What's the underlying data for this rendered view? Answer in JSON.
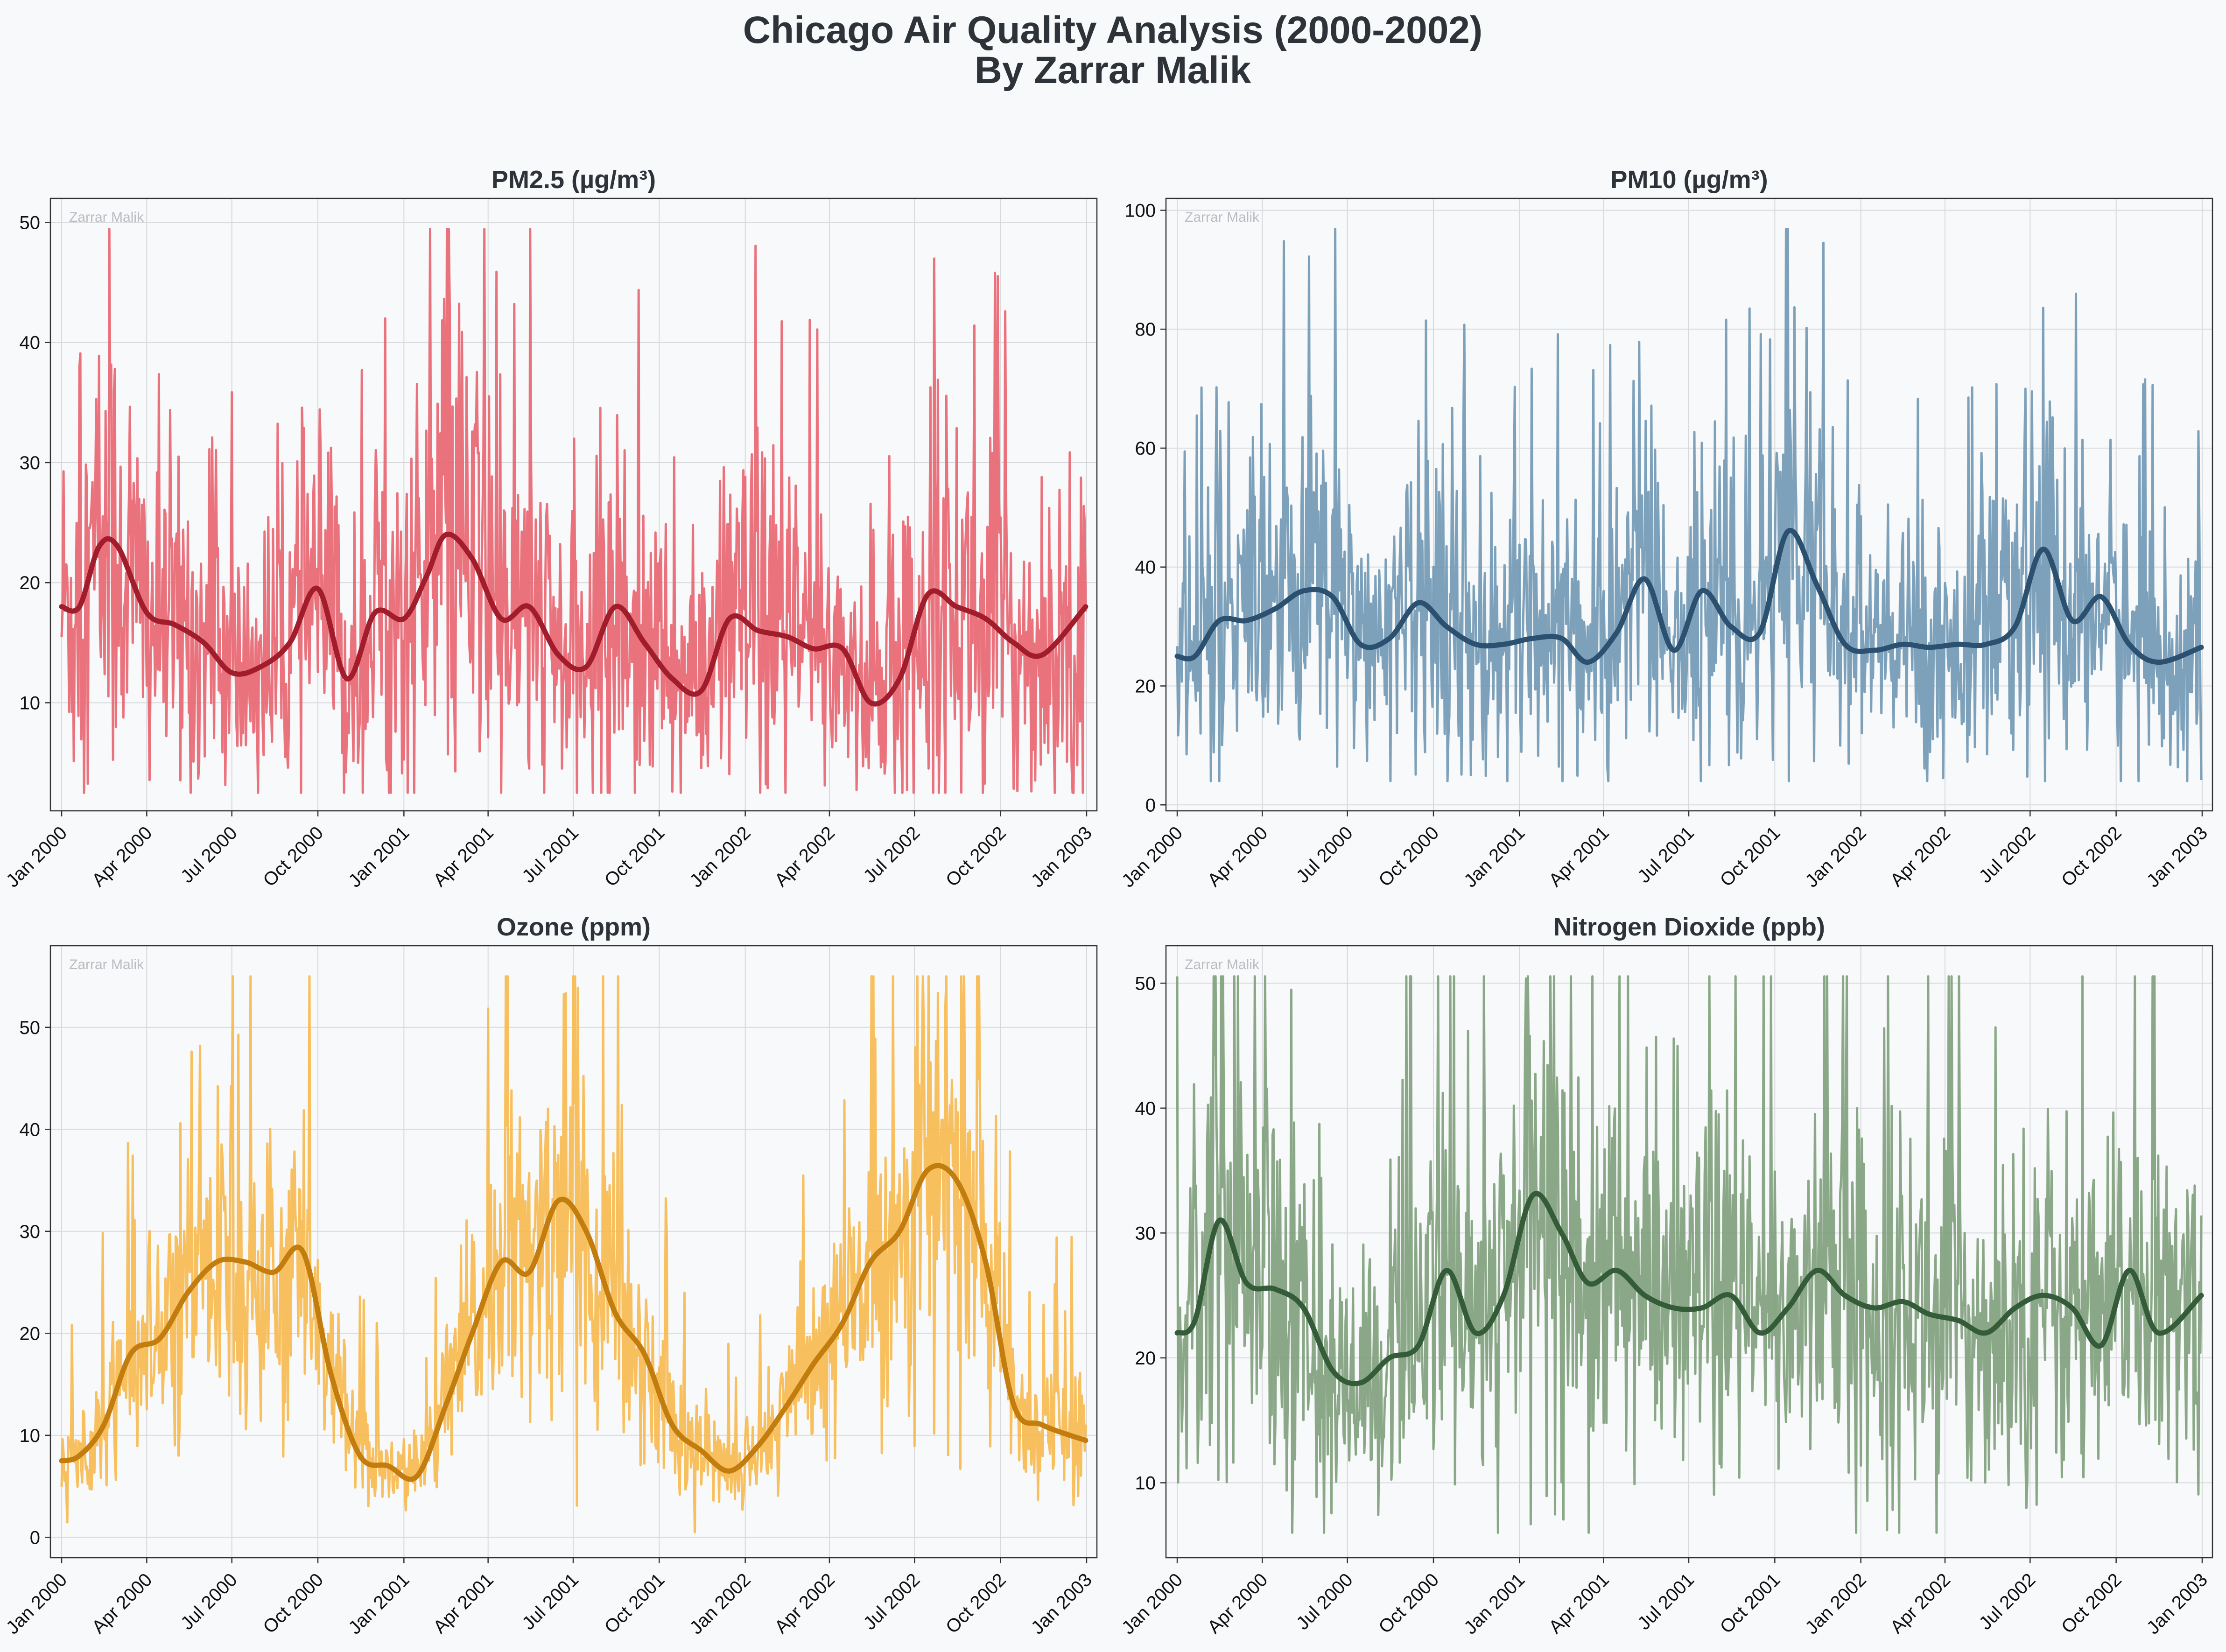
{
  "figure": {
    "title_line1": "Chicago Air Quality Analysis (2000-2002)",
    "title_line2": "By Zarrar Malik",
    "background": "#f8f9fa",
    "watermark": "Zarrar Malik"
  },
  "chart_data": [
    {
      "type": "line",
      "title": "PM2.5 (µg/m³)",
      "xlabel": "",
      "ylabel": "",
      "x_range": [
        "2000-01-01",
        "2002-12-31"
      ],
      "x_ticks": [
        "Jan 2000",
        "Apr 2000",
        "Jul 2000",
        "Oct 2000",
        "Jan 2001",
        "Apr 2001",
        "Jul 2001",
        "Oct 2001",
        "Jan 2002",
        "Apr 2002",
        "Jul 2002",
        "Oct 2002",
        "Jan 2003"
      ],
      "ylim": [
        1,
        52
      ],
      "y_ticks": [
        10,
        20,
        30,
        40,
        50
      ],
      "grid": true,
      "colors": {
        "daily": "#e8636f",
        "rolling": "#a11d2b"
      },
      "series": [
        {
          "kind": "daily",
          "noise": 0.45,
          "min": 2.5,
          "x": [
            "2000-01-01",
            "2000-01-20",
            "2000-02-10",
            "2000-03-01",
            "2000-04-01",
            "2000-05-01",
            "2000-06-01",
            "2000-07-01",
            "2000-08-01",
            "2000-09-01",
            "2000-10-01",
            "2000-11-01",
            "2000-12-01",
            "2001-01-01",
            "2001-01-25",
            "2001-02-15",
            "2001-03-15",
            "2001-04-15",
            "2001-05-15",
            "2001-06-15",
            "2001-07-15",
            "2001-08-15",
            "2001-09-15",
            "2001-10-15",
            "2001-11-15",
            "2001-12-15",
            "2002-01-15",
            "2002-02-15",
            "2002-03-15",
            "2002-04-15",
            "2002-05-15",
            "2002-06-15",
            "2002-07-15",
            "2002-08-15",
            "2002-09-15",
            "2002-10-15",
            "2002-11-15",
            "2002-12-31"
          ],
          "values": [
            18,
            18,
            23,
            23,
            17.5,
            16.5,
            15,
            12.5,
            13,
            15,
            19.5,
            12,
            17.5,
            17,
            20.5,
            24,
            22,
            17,
            18,
            14,
            13,
            18,
            15,
            12,
            11,
            17,
            16,
            15.5,
            14.5,
            14.5,
            10,
            12,
            19,
            18,
            17,
            15,
            14,
            18
          ]
        },
        {
          "kind": "rolling",
          "x": [
            "2000-01-01",
            "2000-01-20",
            "2000-02-10",
            "2000-03-01",
            "2000-04-01",
            "2000-05-01",
            "2000-06-01",
            "2000-07-01",
            "2000-08-01",
            "2000-09-01",
            "2000-10-01",
            "2000-11-01",
            "2000-12-01",
            "2001-01-01",
            "2001-01-25",
            "2001-02-15",
            "2001-03-15",
            "2001-04-15",
            "2001-05-15",
            "2001-06-15",
            "2001-07-15",
            "2001-08-15",
            "2001-09-15",
            "2001-10-15",
            "2001-11-15",
            "2001-12-15",
            "2002-01-15",
            "2002-02-15",
            "2002-03-15",
            "2002-04-15",
            "2002-05-15",
            "2002-06-15",
            "2002-07-15",
            "2002-08-15",
            "2002-09-15",
            "2002-10-15",
            "2002-11-15",
            "2002-12-31"
          ],
          "values": [
            18,
            18,
            23,
            23,
            17.5,
            16.5,
            15,
            12.5,
            13,
            15,
            19.5,
            12,
            17.5,
            17,
            20.5,
            24,
            22,
            17,
            18,
            14,
            13,
            18,
            15,
            12,
            11,
            17,
            16,
            15.5,
            14.5,
            14.5,
            10,
            12,
            19,
            18,
            17,
            15,
            14,
            18
          ]
        }
      ]
    },
    {
      "type": "line",
      "title": "PM10 (µg/m³)",
      "xlabel": "",
      "ylabel": "",
      "x_range": [
        "2000-01-01",
        "2002-12-31"
      ],
      "x_ticks": [
        "Jan 2000",
        "Apr 2000",
        "Jul 2000",
        "Oct 2000",
        "Jan 2001",
        "Apr 2001",
        "Jul 2001",
        "Oct 2001",
        "Jan 2002",
        "Apr 2002",
        "Jul 2002",
        "Oct 2002",
        "Jan 2003"
      ],
      "ylim": [
        -1,
        102
      ],
      "y_ticks": [
        0,
        20,
        40,
        60,
        80,
        100
      ],
      "grid": true,
      "colors": {
        "daily": "#6f97b3",
        "rolling": "#2c5170"
      },
      "series": [
        {
          "kind": "daily",
          "noise": 0.4,
          "min": 4,
          "x": [
            "2000-01-01",
            "2000-01-20",
            "2000-02-15",
            "2000-03-15",
            "2000-04-15",
            "2000-05-15",
            "2000-06-15",
            "2000-07-15",
            "2000-08-15",
            "2000-09-15",
            "2000-10-15",
            "2000-11-15",
            "2000-12-15",
            "2001-01-15",
            "2001-02-15",
            "2001-03-15",
            "2001-04-15",
            "2001-05-15",
            "2001-06-15",
            "2001-07-15",
            "2001-08-15",
            "2001-09-15",
            "2001-10-15",
            "2001-11-15",
            "2001-12-15",
            "2002-01-15",
            "2002-02-15",
            "2002-03-15",
            "2002-04-15",
            "2002-05-15",
            "2002-06-15",
            "2002-07-15",
            "2002-08-15",
            "2002-09-15",
            "2002-10-15",
            "2002-11-15",
            "2002-12-31"
          ],
          "values": [
            25,
            25,
            31,
            31,
            33,
            36,
            35,
            27,
            28,
            34,
            30,
            27,
            27,
            28,
            28,
            24,
            29,
            38,
            26,
            36,
            30,
            29,
            46,
            37,
            27,
            26,
            27,
            26.5,
            27,
            27,
            30,
            43,
            31,
            35,
            27,
            24,
            26.5
          ]
        },
        {
          "kind": "rolling",
          "x": [
            "2000-01-01",
            "2000-01-20",
            "2000-02-15",
            "2000-03-15",
            "2000-04-15",
            "2000-05-15",
            "2000-06-15",
            "2000-07-15",
            "2000-08-15",
            "2000-09-15",
            "2000-10-15",
            "2000-11-15",
            "2000-12-15",
            "2001-01-15",
            "2001-02-15",
            "2001-03-15",
            "2001-04-15",
            "2001-05-15",
            "2001-06-15",
            "2001-07-15",
            "2001-08-15",
            "2001-09-15",
            "2001-10-15",
            "2001-11-15",
            "2001-12-15",
            "2002-01-15",
            "2002-02-15",
            "2002-03-15",
            "2002-04-15",
            "2002-05-15",
            "2002-06-15",
            "2002-07-15",
            "2002-08-15",
            "2002-09-15",
            "2002-10-15",
            "2002-11-15",
            "2002-12-31"
          ],
          "values": [
            25,
            25,
            31,
            31,
            33,
            36,
            35,
            27,
            28,
            34,
            30,
            27,
            27,
            28,
            28,
            24,
            29,
            38,
            26,
            36,
            30,
            29,
            46,
            37,
            27,
            26,
            27,
            26.5,
            27,
            27,
            30,
            43,
            31,
            35,
            27,
            24,
            26.5
          ]
        }
      ]
    },
    {
      "type": "line",
      "title": "Ozone (ppm)",
      "xlabel": "",
      "ylabel": "",
      "x_range": [
        "2000-01-01",
        "2002-12-31"
      ],
      "x_ticks": [
        "Jan 2000",
        "Apr 2000",
        "Jul 2000",
        "Oct 2000",
        "Jan 2001",
        "Apr 2001",
        "Jul 2001",
        "Oct 2001",
        "Jan 2002",
        "Apr 2002",
        "Jul 2002",
        "Oct 2002",
        "Jan 2003"
      ],
      "ylim": [
        -2,
        58
      ],
      "y_ticks": [
        0,
        10,
        20,
        30,
        40,
        50
      ],
      "grid": true,
      "colors": {
        "daily": "#f6b84d",
        "rolling": "#c27d0e"
      },
      "series": [
        {
          "kind": "daily",
          "noise": 0.3,
          "min": 0.5,
          "x": [
            "2000-01-01",
            "2000-01-20",
            "2000-02-15",
            "2000-03-15",
            "2000-04-15",
            "2000-05-15",
            "2000-06-15",
            "2000-07-15",
            "2000-08-15",
            "2000-09-15",
            "2000-10-15",
            "2000-11-15",
            "2000-12-15",
            "2001-01-15",
            "2001-02-15",
            "2001-03-15",
            "2001-04-15",
            "2001-05-15",
            "2001-06-15",
            "2001-07-15",
            "2001-08-15",
            "2001-09-15",
            "2001-10-15",
            "2001-11-15",
            "2001-12-15",
            "2002-01-15",
            "2002-02-15",
            "2002-03-15",
            "2002-04-15",
            "2002-05-15",
            "2002-06-15",
            "2002-07-15",
            "2002-08-15",
            "2002-09-15",
            "2002-10-15",
            "2002-11-15",
            "2002-12-31"
          ],
          "values": [
            7.5,
            8,
            11,
            18,
            19.5,
            24,
            27,
            27,
            26,
            28,
            16,
            8,
            7,
            6,
            13,
            20,
            27,
            26,
            33,
            30,
            22,
            18,
            11,
            8.5,
            6.5,
            9,
            13,
            17,
            21,
            27,
            30,
            36,
            35,
            27,
            13,
            11,
            9.5
          ]
        },
        {
          "kind": "rolling",
          "x": [
            "2000-01-01",
            "2000-01-20",
            "2000-02-15",
            "2000-03-15",
            "2000-04-15",
            "2000-05-15",
            "2000-06-15",
            "2000-07-15",
            "2000-08-15",
            "2000-09-15",
            "2000-10-15",
            "2000-11-15",
            "2000-12-15",
            "2001-01-15",
            "2001-02-15",
            "2001-03-15",
            "2001-04-15",
            "2001-05-15",
            "2001-06-15",
            "2001-07-15",
            "2001-08-15",
            "2001-09-15",
            "2001-10-15",
            "2001-11-15",
            "2001-12-15",
            "2002-01-15",
            "2002-02-15",
            "2002-03-15",
            "2002-04-15",
            "2002-05-15",
            "2002-06-15",
            "2002-07-15",
            "2002-08-15",
            "2002-09-15",
            "2002-10-15",
            "2002-11-15",
            "2002-12-31"
          ],
          "values": [
            7.5,
            8,
            11,
            18,
            19.5,
            24,
            27,
            27,
            26,
            28,
            16,
            8,
            7,
            6,
            13,
            20,
            27,
            26,
            33,
            30,
            22,
            18,
            11,
            8.5,
            6.5,
            9,
            13,
            17,
            21,
            27,
            30,
            36,
            35,
            27,
            13,
            11,
            9.5
          ]
        }
      ]
    },
    {
      "type": "line",
      "title": "Nitrogen Dioxide (ppb)",
      "xlabel": "",
      "ylabel": "",
      "x_range": [
        "2000-01-01",
        "2002-12-31"
      ],
      "x_ticks": [
        "Jan 2000",
        "Apr 2000",
        "Jul 2000",
        "Oct 2000",
        "Jan 2001",
        "Apr 2001",
        "Jul 2001",
        "Oct 2001",
        "Jan 2002",
        "Apr 2002",
        "Jul 2002",
        "Oct 2002",
        "Jan 2003"
      ],
      "ylim": [
        4,
        53
      ],
      "y_ticks": [
        10,
        20,
        30,
        40,
        50
      ],
      "grid": true,
      "colors": {
        "daily": "#7d9e7a",
        "rolling": "#355c38"
      },
      "series": [
        {
          "kind": "daily",
          "noise": 0.3,
          "min": 6,
          "x": [
            "2000-01-01",
            "2000-01-20",
            "2000-02-15",
            "2000-03-15",
            "2000-04-15",
            "2000-05-15",
            "2000-06-15",
            "2000-07-15",
            "2000-08-15",
            "2000-09-15",
            "2000-10-15",
            "2000-11-15",
            "2000-12-15",
            "2001-01-15",
            "2001-02-15",
            "2001-03-15",
            "2001-04-15",
            "2001-05-15",
            "2001-06-15",
            "2001-07-15",
            "2001-08-15",
            "2001-09-15",
            "2001-10-15",
            "2001-11-15",
            "2001-12-15",
            "2002-01-15",
            "2002-02-15",
            "2002-03-15",
            "2002-04-15",
            "2002-05-15",
            "2002-06-15",
            "2002-07-15",
            "2002-08-15",
            "2002-09-15",
            "2002-10-15",
            "2002-11-15",
            "2002-12-31"
          ],
          "values": [
            22,
            23,
            31,
            26,
            25.5,
            24,
            19,
            18,
            20,
            21,
            27,
            22,
            25,
            33,
            30,
            26,
            27,
            25,
            24,
            24,
            25,
            22,
            24,
            27,
            25,
            24,
            24.5,
            23.5,
            23,
            22,
            24,
            25,
            24,
            21,
            27,
            22,
            25
          ]
        },
        {
          "kind": "rolling",
          "x": [
            "2000-01-01",
            "2000-01-20",
            "2000-02-15",
            "2000-03-15",
            "2000-04-15",
            "2000-05-15",
            "2000-06-15",
            "2000-07-15",
            "2000-08-15",
            "2000-09-15",
            "2000-10-15",
            "2000-11-15",
            "2000-12-15",
            "2001-01-15",
            "2001-02-15",
            "2001-03-15",
            "2001-04-15",
            "2001-05-15",
            "2001-06-15",
            "2001-07-15",
            "2001-08-15",
            "2001-09-15",
            "2001-10-15",
            "2001-11-15",
            "2001-12-15",
            "2002-01-15",
            "2002-02-15",
            "2002-03-15",
            "2002-04-15",
            "2002-05-15",
            "2002-06-15",
            "2002-07-15",
            "2002-08-15",
            "2002-09-15",
            "2002-10-15",
            "2002-11-15",
            "2002-12-31"
          ],
          "values": [
            22,
            23,
            31,
            26,
            25.5,
            24,
            19,
            18,
            20,
            21,
            27,
            22,
            25,
            33,
            30,
            26,
            27,
            25,
            24,
            24,
            25,
            22,
            24,
            27,
            25,
            24,
            24.5,
            23.5,
            23,
            22,
            24,
            25,
            24,
            21,
            27,
            22,
            25
          ]
        }
      ]
    }
  ]
}
